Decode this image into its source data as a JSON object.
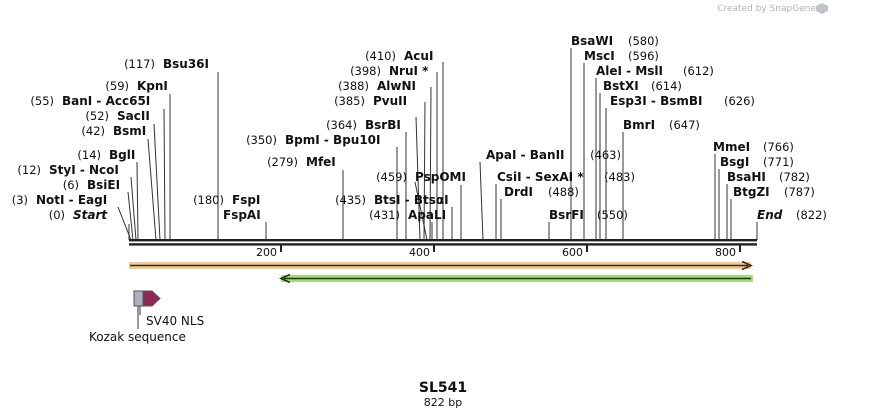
{
  "watermark": "Created by SnapGene",
  "plasmid": {
    "name": "SL541",
    "size_label": "822 bp"
  },
  "ruler_ticks": [
    "200",
    "400",
    "600",
    "800"
  ],
  "features": {
    "kozak": "Kozak sequence",
    "nls": "SV40 NLS"
  },
  "sites": [
    {
      "pos": "(0)",
      "name": "Start"
    },
    {
      "pos": "(3)",
      "name": "NotI  -  EagI"
    },
    {
      "pos": "(6)",
      "name": "BsiEI"
    },
    {
      "pos": "(12)",
      "name": "StyI  -  NcoI"
    },
    {
      "pos": "(14)",
      "name": "BglI"
    },
    {
      "pos": "(42)",
      "name": "BsmI"
    },
    {
      "pos": "(52)",
      "name": "SacII"
    },
    {
      "pos": "(55)",
      "name": "BanI  -  Acc65I"
    },
    {
      "pos": "(59)",
      "name": "KpnI"
    },
    {
      "pos": "(117)",
      "name": "Bsu36I"
    },
    {
      "pos": "(180)",
      "name": "FspI"
    },
    {
      "pos": "",
      "name": "FspAI"
    },
    {
      "pos": "(350)",
      "name": "BpmI  -  Bpu10I"
    },
    {
      "pos": "(279)",
      "name": "MfeI"
    },
    {
      "pos": "(364)",
      "name": "BsrBI"
    },
    {
      "pos": "(385)",
      "name": "PvuII"
    },
    {
      "pos": "(388)",
      "name": "AlwNI"
    },
    {
      "pos": "(398)",
      "name": "NruI *"
    },
    {
      "pos": "(410)",
      "name": "AcuI"
    },
    {
      "pos": "(435)",
      "name": "BtsI  -  BtsαI"
    },
    {
      "pos": "(431)",
      "name": "ApaLI"
    },
    {
      "pos": "(459)",
      "name": "PspOMI"
    },
    {
      "pos": "(463)",
      "name": "ApaI  -  BanII"
    },
    {
      "pos": "(483)",
      "name": "CsiI  -  SexAI *"
    },
    {
      "pos": "(488)",
      "name": "DrdI"
    },
    {
      "pos": "(550)",
      "name": "BsrFI"
    },
    {
      "pos": "(580)",
      "name": "BsaWI"
    },
    {
      "pos": "(596)",
      "name": "MscI"
    },
    {
      "pos": "(612)",
      "name": "AleI  -  MslI"
    },
    {
      "pos": "(614)",
      "name": "BstXI"
    },
    {
      "pos": "(626)",
      "name": "Esp3I  -  BsmBI"
    },
    {
      "pos": "(647)",
      "name": "BmrI"
    },
    {
      "pos": "(766)",
      "name": "MmeI"
    },
    {
      "pos": "(771)",
      "name": "BsgI"
    },
    {
      "pos": "(782)",
      "name": "BsaHI"
    },
    {
      "pos": "(787)",
      "name": "BtgZI"
    },
    {
      "pos": "(822)",
      "name": "End"
    }
  ],
  "colors": {
    "orange_track": "#f2a33a",
    "green_track": "#6cc23a",
    "kozak_box": "#a9b1c1",
    "nls_arrow": "#8c2a55"
  }
}
